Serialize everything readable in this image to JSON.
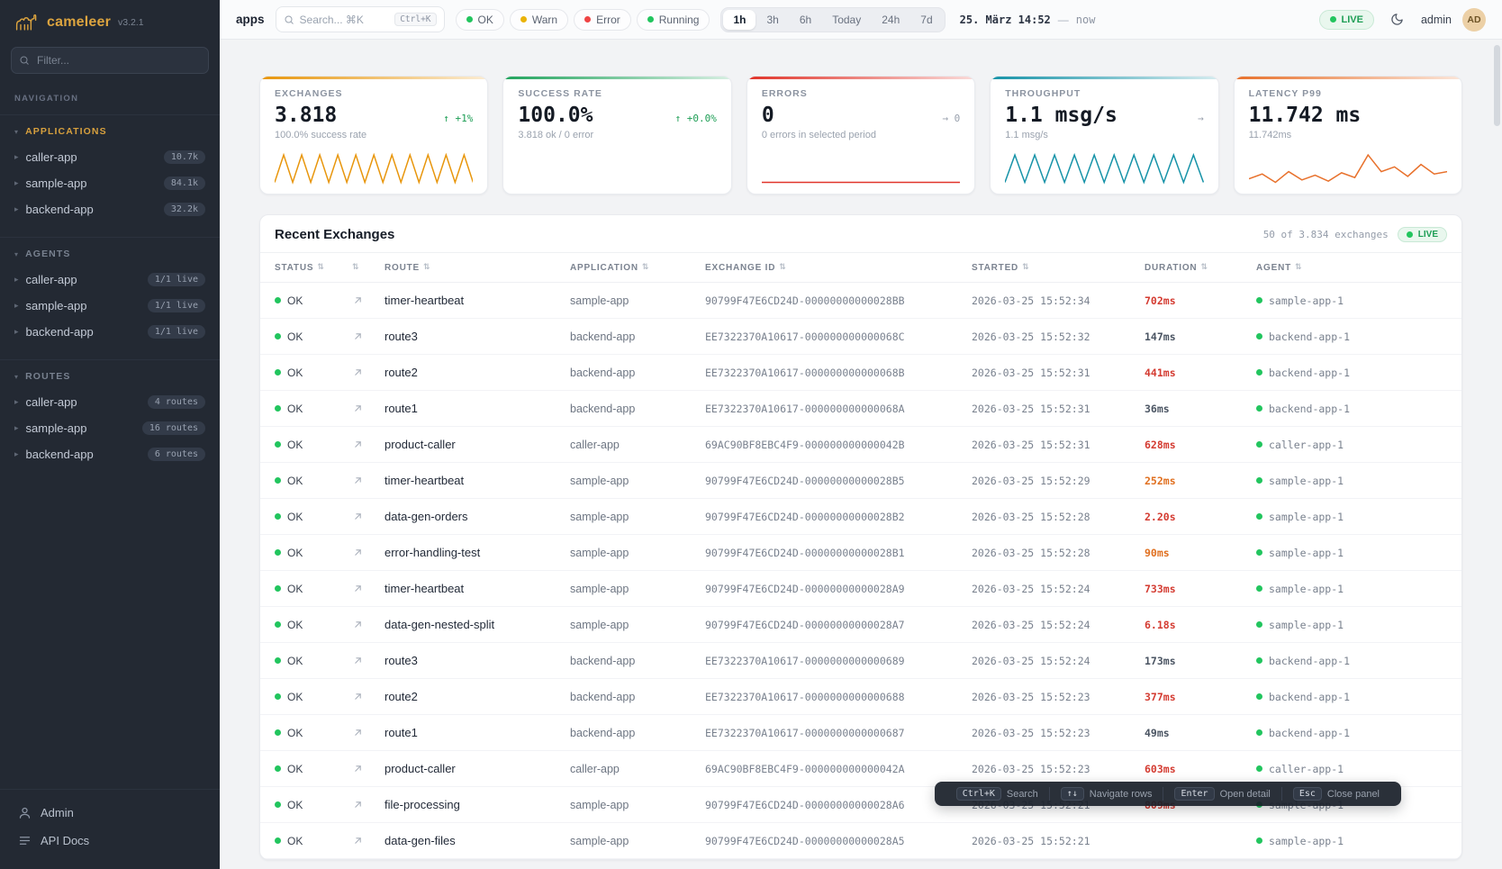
{
  "app": {
    "name": "cameleer",
    "version": "v3.2.1"
  },
  "sidebar": {
    "filter_placeholder": "Filter...",
    "nav_label": "NAVIGATION",
    "sections": [
      {
        "label": "APPLICATIONS",
        "accent": true,
        "items": [
          {
            "label": "caller-app",
            "badge": "10.7k"
          },
          {
            "label": "sample-app",
            "badge": "84.1k"
          },
          {
            "label": "backend-app",
            "badge": "32.2k"
          }
        ]
      },
      {
        "label": "AGENTS",
        "accent": false,
        "items": [
          {
            "label": "caller-app",
            "badge": "1/1 live"
          },
          {
            "label": "sample-app",
            "badge": "1/1 live"
          },
          {
            "label": "backend-app",
            "badge": "1/1 live"
          }
        ]
      },
      {
        "label": "ROUTES",
        "accent": false,
        "items": [
          {
            "label": "caller-app",
            "badge": "4 routes"
          },
          {
            "label": "sample-app",
            "badge": "16 routes"
          },
          {
            "label": "backend-app",
            "badge": "6 routes"
          }
        ]
      }
    ],
    "footer": [
      {
        "label": "Admin",
        "icon": "user-icon"
      },
      {
        "label": "API Docs",
        "icon": "docs-icon"
      }
    ]
  },
  "topbar": {
    "page_title": "apps",
    "search_placeholder": "Search... ⌘K",
    "search_kbd": "Ctrl+K",
    "status_filters": [
      {
        "label": "OK",
        "color": "#22c55e"
      },
      {
        "label": "Warn",
        "color": "#eab308"
      },
      {
        "label": "Error",
        "color": "#ef4444"
      },
      {
        "label": "Running",
        "color": "#22c55e"
      }
    ],
    "ranges": [
      "1h",
      "3h",
      "6h",
      "Today",
      "24h",
      "7d"
    ],
    "active_range": "1h",
    "date_label": "25. März 14:52",
    "date_separator": "—",
    "date_now": "now",
    "live_label": "LIVE",
    "user_name": "admin",
    "avatar_initials": "AD"
  },
  "cards": [
    {
      "title": "EXCHANGES",
      "value": "3.818",
      "delta": "↑ +1%",
      "delta_positive": true,
      "sub": "100.0% success rate",
      "color": "#e8960c",
      "spark_values": [
        0,
        1,
        0,
        1,
        0,
        1,
        0,
        1,
        0,
        1,
        0,
        1,
        0,
        1,
        0,
        1,
        0,
        1,
        0,
        1,
        0,
        1,
        0
      ]
    },
    {
      "title": "SUCCESS RATE",
      "value": "100.0%",
      "delta": "↑ +0.0%",
      "delta_positive": true,
      "sub": "3.818 ok / 0 error",
      "color": "#22a45d",
      "spark_values": []
    },
    {
      "title": "ERRORS",
      "value": "0",
      "delta": "→ 0",
      "delta_positive": false,
      "sub": "0 errors in selected period",
      "color": "#e1342a",
      "spark_values": [
        0,
        0
      ]
    },
    {
      "title": "THROUGHPUT",
      "value": "1.1 msg/s",
      "delta": "→",
      "delta_positive": false,
      "sub": "1.1 msg/s",
      "color": "#1793a8",
      "spark_values": [
        0,
        1,
        0,
        1,
        0,
        1,
        0,
        1,
        0,
        1,
        0,
        1,
        0,
        1,
        0,
        1,
        0,
        1,
        0,
        1,
        0
      ]
    },
    {
      "title": "LATENCY P99",
      "value": "11.742 ms",
      "delta": "",
      "delta_positive": false,
      "sub": "11.742ms",
      "color": "#e8712c",
      "spark_values": [
        18,
        22,
        15,
        24,
        17,
        21,
        16,
        23,
        19,
        38,
        24,
        28,
        20,
        30,
        22,
        24
      ]
    }
  ],
  "exchanges": {
    "title": "Recent Exchanges",
    "count_label": "50 of 3.834 exchanges",
    "live_label": "LIVE",
    "columns": [
      {
        "label": "STATUS"
      },
      {
        "label": ""
      },
      {
        "label": "ROUTE"
      },
      {
        "label": "APPLICATION"
      },
      {
        "label": "EXCHANGE ID"
      },
      {
        "label": "STARTED"
      },
      {
        "label": "DURATION"
      },
      {
        "label": "AGENT"
      }
    ],
    "rows": [
      {
        "status": "OK",
        "route": "timer-heartbeat",
        "app": "sample-app",
        "id": "90799F47E6CD24D-00000000000028BB",
        "started": "2026-03-25 15:52:34",
        "duration": "702ms",
        "dlevel": "red",
        "agent": "sample-app-1"
      },
      {
        "status": "OK",
        "route": "route3",
        "app": "backend-app",
        "id": "EE7322370A10617-000000000000068C",
        "started": "2026-03-25 15:52:32",
        "duration": "147ms",
        "dlevel": "dark",
        "agent": "backend-app-1"
      },
      {
        "status": "OK",
        "route": "route2",
        "app": "backend-app",
        "id": "EE7322370A10617-000000000000068B",
        "started": "2026-03-25 15:52:31",
        "duration": "441ms",
        "dlevel": "red",
        "agent": "backend-app-1"
      },
      {
        "status": "OK",
        "route": "route1",
        "app": "backend-app",
        "id": "EE7322370A10617-000000000000068A",
        "started": "2026-03-25 15:52:31",
        "duration": "36ms",
        "dlevel": "dark",
        "agent": "backend-app-1"
      },
      {
        "status": "OK",
        "route": "product-caller",
        "app": "caller-app",
        "id": "69AC90BF8EBC4F9-000000000000042B",
        "started": "2026-03-25 15:52:31",
        "duration": "628ms",
        "dlevel": "red",
        "agent": "caller-app-1"
      },
      {
        "status": "OK",
        "route": "timer-heartbeat",
        "app": "sample-app",
        "id": "90799F47E6CD24D-00000000000028B5",
        "started": "2026-03-25 15:52:29",
        "duration": "252ms",
        "dlevel": "orange",
        "agent": "sample-app-1"
      },
      {
        "status": "OK",
        "route": "data-gen-orders",
        "app": "sample-app",
        "id": "90799F47E6CD24D-00000000000028B2",
        "started": "2026-03-25 15:52:28",
        "duration": "2.20s",
        "dlevel": "red",
        "agent": "sample-app-1"
      },
      {
        "status": "OK",
        "route": "error-handling-test",
        "app": "sample-app",
        "id": "90799F47E6CD24D-00000000000028B1",
        "started": "2026-03-25 15:52:28",
        "duration": "90ms",
        "dlevel": "orange",
        "agent": "sample-app-1"
      },
      {
        "status": "OK",
        "route": "timer-heartbeat",
        "app": "sample-app",
        "id": "90799F47E6CD24D-00000000000028A9",
        "started": "2026-03-25 15:52:24",
        "duration": "733ms",
        "dlevel": "red",
        "agent": "sample-app-1"
      },
      {
        "status": "OK",
        "route": "data-gen-nested-split",
        "app": "sample-app",
        "id": "90799F47E6CD24D-00000000000028A7",
        "started": "2026-03-25 15:52:24",
        "duration": "6.18s",
        "dlevel": "red",
        "agent": "sample-app-1"
      },
      {
        "status": "OK",
        "route": "route3",
        "app": "backend-app",
        "id": "EE7322370A10617-0000000000000689",
        "started": "2026-03-25 15:52:24",
        "duration": "173ms",
        "dlevel": "dark",
        "agent": "backend-app-1"
      },
      {
        "status": "OK",
        "route": "route2",
        "app": "backend-app",
        "id": "EE7322370A10617-0000000000000688",
        "started": "2026-03-25 15:52:23",
        "duration": "377ms",
        "dlevel": "red",
        "agent": "backend-app-1"
      },
      {
        "status": "OK",
        "route": "route1",
        "app": "backend-app",
        "id": "EE7322370A10617-0000000000000687",
        "started": "2026-03-25 15:52:23",
        "duration": "49ms",
        "dlevel": "dark",
        "agent": "backend-app-1"
      },
      {
        "status": "OK",
        "route": "product-caller",
        "app": "caller-app",
        "id": "69AC90BF8EBC4F9-000000000000042A",
        "started": "2026-03-25 15:52:23",
        "duration": "603ms",
        "dlevel": "red",
        "agent": "caller-app-1"
      },
      {
        "status": "OK",
        "route": "file-processing",
        "app": "sample-app",
        "id": "90799F47E6CD24D-00000000000028A6",
        "started": "2026-03-25 15:52:21",
        "duration": "809ms",
        "dlevel": "red",
        "agent": "sample-app-1"
      },
      {
        "status": "OK",
        "route": "data-gen-files",
        "app": "sample-app",
        "id": "90799F47E6CD24D-00000000000028A5",
        "started": "2026-03-25 15:52:21",
        "duration": "",
        "dlevel": "dark",
        "agent": "sample-app-1"
      }
    ]
  },
  "shortcuts": [
    {
      "keys": "Ctrl+K",
      "label": "Search"
    },
    {
      "keys": "↑↓",
      "label": "Navigate rows"
    },
    {
      "keys": "Enter",
      "label": "Open detail"
    },
    {
      "keys": "Esc",
      "label": "Close panel"
    }
  ]
}
